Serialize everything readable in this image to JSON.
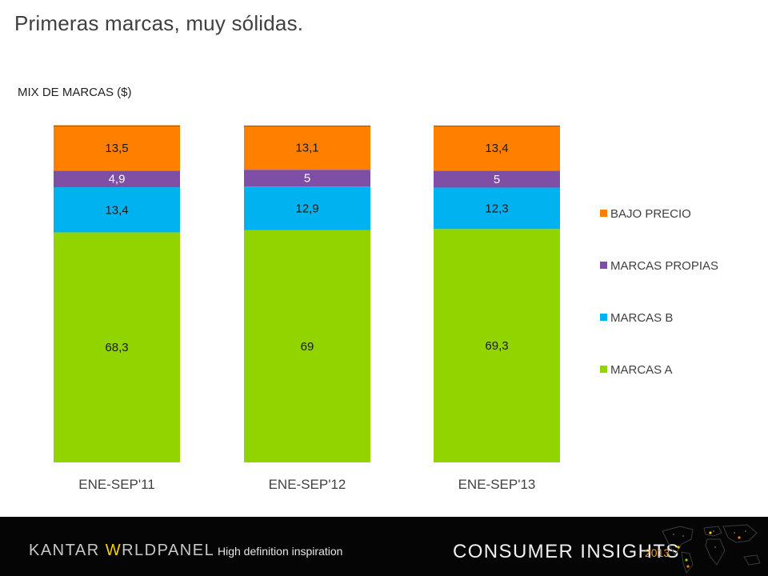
{
  "slide": {
    "title": "Primeras marcas, muy sólidas."
  },
  "chart_data": {
    "type": "bar",
    "stacked": true,
    "title": "MIX DE MARCAS ($)",
    "categories": [
      "ENE-SEP'11",
      "ENE-SEP'12",
      "ENE-SEP'13"
    ],
    "series": [
      {
        "name": "MARCAS A",
        "color": "#92d400",
        "values": [
          68.3,
          69,
          69.3
        ],
        "labels": [
          "68,3",
          "69",
          "69,3"
        ]
      },
      {
        "name": "MARCAS B",
        "color": "#00b2f0",
        "values": [
          13.4,
          12.9,
          12.3
        ],
        "labels": [
          "13,4",
          "12,9",
          "12,3"
        ]
      },
      {
        "name": "MARCAS PROPIAS",
        "color": "#7f4fa5",
        "values": [
          4.9,
          5,
          5
        ],
        "labels": [
          "4,9",
          "5",
          "5"
        ]
      },
      {
        "name": "BAJO PRECIO",
        "color": "#ff8000",
        "values": [
          13.5,
          13.1,
          13.4
        ],
        "labels": [
          "13,5",
          "13,1",
          "13,4"
        ]
      }
    ],
    "legend_order": [
      "BAJO PRECIO",
      "MARCAS PROPIAS",
      "MARCAS B",
      "MARCAS A"
    ],
    "legend_position": "right",
    "ylim": [
      0,
      100
    ],
    "grid": false
  },
  "footer": {
    "brand_prefix": "KANTAR ",
    "brand_accent": "W",
    "brand_suffix": "RLDPANEL",
    "tagline": "High definition inspiration",
    "insights": "CONSUMER INSIGHTS",
    "year": "2013",
    "map_icon": "world-map-icon"
  }
}
